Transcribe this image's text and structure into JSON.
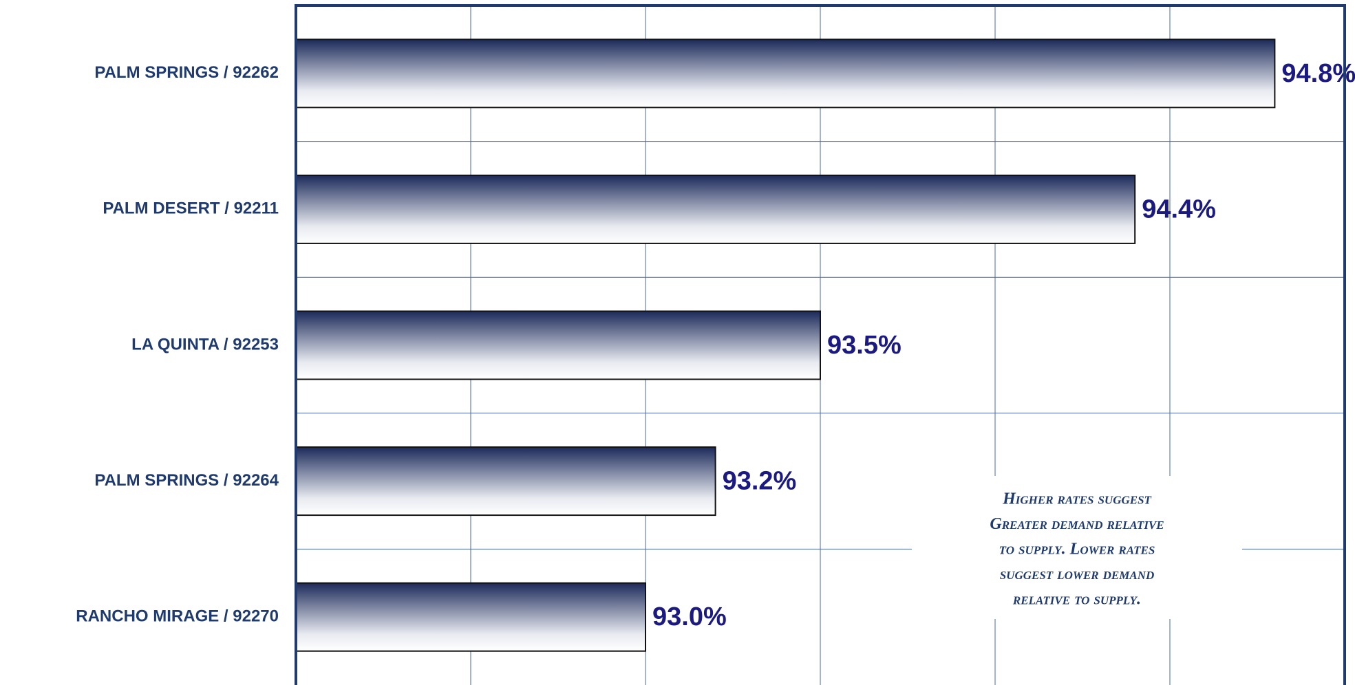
{
  "chart_data": {
    "type": "barh",
    "categories": [
      "PALM SPRINGS / 92262",
      "PALM DESERT / 92211",
      "LA QUINTA / 92253",
      "PALM SPRINGS / 92264",
      "RANCHO MIRAGE / 92270"
    ],
    "values": [
      94.8,
      94.4,
      93.5,
      93.2,
      93.0
    ],
    "value_labels": [
      "94.8%",
      "94.4%",
      "93.5%",
      "93.2%",
      "93.0%"
    ],
    "color": "#1c2a5a",
    "xlim": [
      92,
      95
    ],
    "xticks": [
      92,
      92.5,
      93,
      93.5,
      94,
      94.5,
      95
    ],
    "grid": true,
    "annotation": [
      "Higher rates suggest",
      "Greater demand relative",
      "to supply. Lower rates",
      "suggest lower demand",
      "relative to supply."
    ]
  }
}
